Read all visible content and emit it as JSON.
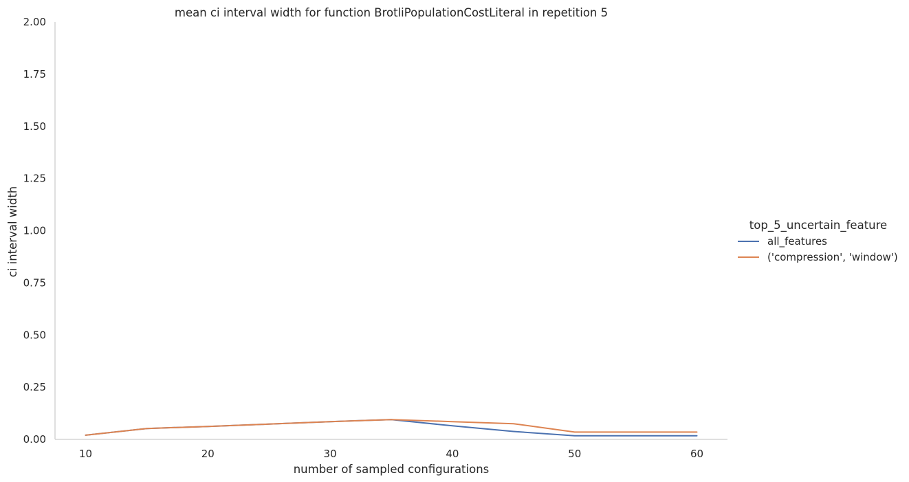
{
  "chart_data": {
    "type": "line",
    "title": "mean ci interval width for function BrotliPopulationCostLiteral in repetition 5",
    "xlabel": "number of sampled configurations",
    "ylabel": "ci interval width",
    "xlim": [
      7.5,
      62.5
    ],
    "ylim": [
      0,
      2.0
    ],
    "xticks": [
      10,
      20,
      30,
      40,
      50,
      60
    ],
    "xtick_labels": [
      "10",
      "20",
      "30",
      "40",
      "50",
      "60"
    ],
    "yticks": [
      0,
      0.25,
      0.5,
      0.75,
      1.0,
      1.25,
      1.5,
      1.75,
      2.0
    ],
    "ytick_labels": [
      "0.00",
      "0.25",
      "0.50",
      "0.75",
      "1.00",
      "1.25",
      "1.50",
      "1.75",
      "2.00"
    ],
    "grid": false,
    "legend": {
      "title": "top_5_uncertain_feature",
      "placement": "right"
    },
    "x": [
      10,
      15,
      20,
      25,
      30,
      35,
      40,
      45,
      50,
      55,
      60
    ],
    "series": [
      {
        "name": "all_features",
        "color": "#4c72b0",
        "values": [
          0.02,
          0.052,
          0.062,
          0.073,
          0.085,
          0.095,
          0.065,
          0.038,
          0.017,
          0.017,
          0.017
        ]
      },
      {
        "name": "('compression', 'window')",
        "color": "#dd8452",
        "values": [
          0.02,
          0.052,
          0.062,
          0.073,
          0.085,
          0.095,
          0.085,
          0.075,
          0.035,
          0.035,
          0.035
        ]
      }
    ]
  }
}
